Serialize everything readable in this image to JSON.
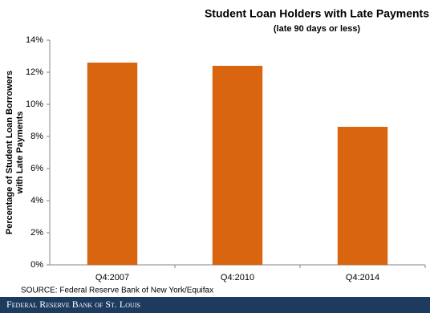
{
  "chart_data": {
    "type": "bar",
    "title": "Student Loan Holders with Late Payments",
    "subtitle": "(late 90 days or less)",
    "y_label": [
      "Percentage of Student Loan Borrowers",
      "with Late Payments"
    ],
    "categories": [
      "Q4:2007",
      "Q4:2010",
      "Q4:2014"
    ],
    "values": [
      12.6,
      12.4,
      8.6
    ],
    "color": "#d9650e",
    "ylim": [
      0,
      14
    ],
    "yticks": [
      {
        "value": 0,
        "label": "0%"
      },
      {
        "value": 2,
        "label": "2%"
      },
      {
        "value": 4,
        "label": "4%"
      },
      {
        "value": 6,
        "label": "6%"
      },
      {
        "value": 8,
        "label": "8%"
      },
      {
        "value": 10,
        "label": "10%"
      },
      {
        "value": 12,
        "label": "12%"
      },
      {
        "value": 14,
        "label": "14%"
      }
    ],
    "grid": false,
    "source": "SOURCE: Federal Reserve Bank of New York/Equifax",
    "footer": "Federal Reserve Bank of St. Louis"
  }
}
